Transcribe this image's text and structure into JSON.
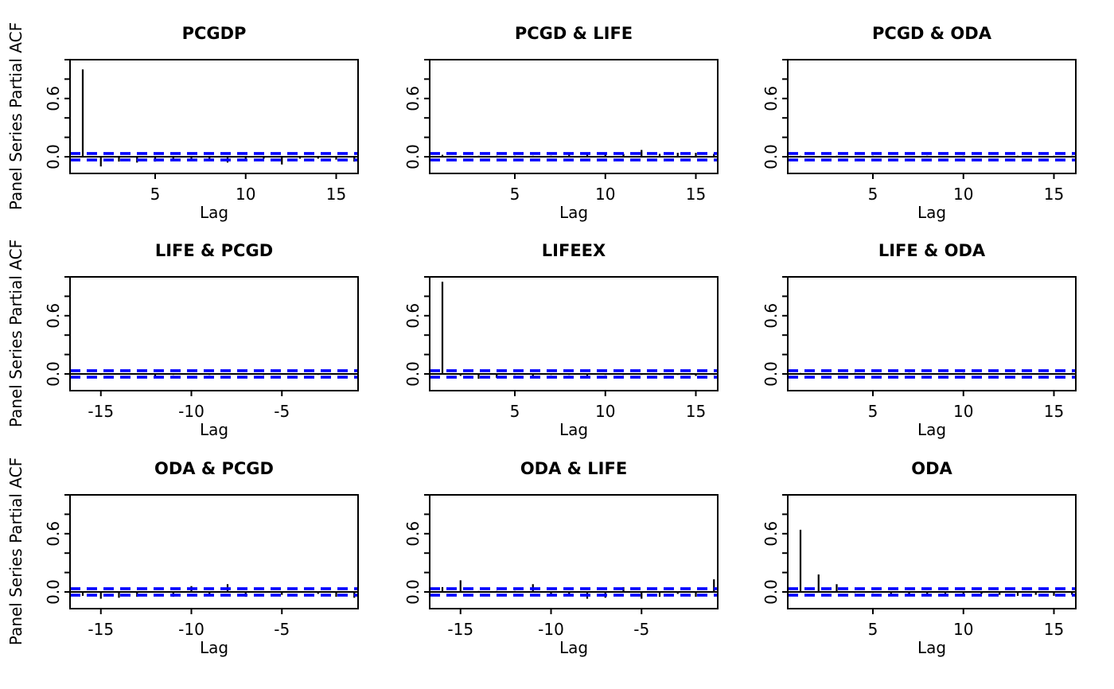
{
  "figure": {
    "ylab": "Panel Series Partial ACF",
    "xlab": "Lag",
    "background": "#ffffff",
    "bar_color": "#000000",
    "axis_color": "#000000",
    "ci_color": "#0000ff",
    "ci_value": 0.033,
    "ci_style": "dashed",
    "ylim": [
      -0.172,
      1.0
    ],
    "ytick_values": [
      0.0,
      0.2,
      0.4,
      0.6,
      0.8,
      1.0
    ],
    "ytick_labels": [
      {
        "v": 0.0,
        "label": "0.0"
      },
      {
        "v": 0.6,
        "label": "0.6"
      }
    ],
    "grid": "off",
    "layout": "3x3 grid of partial autocorrelation plots"
  },
  "chart_data": [
    {
      "type": "bar",
      "title": "PCGDP",
      "x": [
        1,
        2,
        3,
        4,
        5,
        6,
        7,
        8,
        9,
        10,
        11,
        12,
        13,
        14,
        15,
        16
      ],
      "values": [
        0.9,
        -0.1,
        -0.05,
        -0.06,
        -0.05,
        -0.03,
        -0.02,
        -0.02,
        -0.06,
        -0.04,
        -0.02,
        -0.08,
        -0.02,
        -0.02,
        -0.03,
        -0.05
      ],
      "xticks": [
        {
          "v": 5,
          "label": "5"
        },
        {
          "v": 10,
          "label": "10"
        },
        {
          "v": 15,
          "label": "15"
        }
      ]
    },
    {
      "type": "bar",
      "title": "PCGD & LIFE",
      "x": [
        1,
        2,
        3,
        4,
        5,
        6,
        7,
        8,
        9,
        10,
        11,
        12,
        13,
        14,
        15,
        16
      ],
      "values": [
        0.02,
        0.01,
        0.01,
        0.01,
        0.01,
        0.01,
        0.01,
        0.02,
        0.03,
        0.04,
        0.03,
        0.07,
        0.03,
        0.04,
        0.04,
        0.03
      ],
      "xticks": [
        {
          "v": 5,
          "label": "5"
        },
        {
          "v": 10,
          "label": "10"
        },
        {
          "v": 15,
          "label": "15"
        }
      ]
    },
    {
      "type": "bar",
      "title": "PCGD & ODA",
      "x": [
        1,
        2,
        3,
        4,
        5,
        6,
        7,
        8,
        9,
        10,
        11,
        12,
        13,
        14,
        15,
        16
      ],
      "values": [
        0.01,
        0.0,
        0.01,
        0.0,
        0.01,
        0.0,
        0.0,
        0.01,
        0.0,
        0.01,
        0.0,
        0.0,
        0.01,
        0.0,
        0.01,
        0.01
      ],
      "xticks": [
        {
          "v": 5,
          "label": "5"
        },
        {
          "v": 10,
          "label": "10"
        },
        {
          "v": 15,
          "label": "15"
        }
      ]
    },
    {
      "type": "bar",
      "title": "LIFE & PCGD",
      "x": [
        -16,
        -15,
        -14,
        -13,
        -12,
        -11,
        -10,
        -9,
        -8,
        -7,
        -6,
        -5,
        -4,
        -3,
        -2,
        -1
      ],
      "values": [
        0.0,
        -0.01,
        0.0,
        0.0,
        -0.04,
        -0.01,
        0.0,
        -0.01,
        0.0,
        0.0,
        -0.01,
        0.0,
        0.0,
        -0.01,
        0.0,
        -0.01
      ],
      "xticks": [
        {
          "v": -15,
          "label": "-15"
        },
        {
          "v": -10,
          "label": "-10"
        },
        {
          "v": -5,
          "label": "-5"
        }
      ]
    },
    {
      "type": "bar",
      "title": "LIFEEX",
      "x": [
        1,
        2,
        3,
        4,
        5,
        6,
        7,
        8,
        9,
        10,
        11,
        12,
        13,
        14,
        15,
        16
      ],
      "values": [
        0.95,
        -0.02,
        -0.05,
        -0.04,
        -0.01,
        -0.03,
        -0.01,
        -0.01,
        -0.02,
        -0.01,
        -0.01,
        -0.01,
        -0.01,
        -0.01,
        -0.02,
        -0.01
      ],
      "xticks": [
        {
          "v": 5,
          "label": "5"
        },
        {
          "v": 10,
          "label": "10"
        },
        {
          "v": 15,
          "label": "15"
        }
      ]
    },
    {
      "type": "bar",
      "title": "LIFE & ODA",
      "x": [
        1,
        2,
        3,
        4,
        5,
        6,
        7,
        8,
        9,
        10,
        11,
        12,
        13,
        14,
        15,
        16
      ],
      "values": [
        0.01,
        0.0,
        0.0,
        0.01,
        0.0,
        0.0,
        0.01,
        0.0,
        0.0,
        0.01,
        0.0,
        0.0,
        0.01,
        0.0,
        0.0,
        0.01
      ],
      "xticks": [
        {
          "v": 5,
          "label": "5"
        },
        {
          "v": 10,
          "label": "10"
        },
        {
          "v": 15,
          "label": "15"
        }
      ]
    },
    {
      "type": "bar",
      "title": "ODA & PCGD",
      "x": [
        -16,
        -15,
        -14,
        -13,
        -12,
        -11,
        -10,
        -9,
        -8,
        -7,
        -6,
        -5,
        -4,
        -3,
        -2,
        -1
      ],
      "values": [
        -0.04,
        -0.07,
        -0.06,
        -0.05,
        0.0,
        -0.05,
        0.06,
        -0.04,
        0.08,
        -0.05,
        0.0,
        -0.03,
        0.0,
        -0.02,
        -0.05,
        -0.06
      ],
      "xticks": [
        {
          "v": -15,
          "label": "-15"
        },
        {
          "v": -10,
          "label": "-10"
        },
        {
          "v": -5,
          "label": "-5"
        }
      ]
    },
    {
      "type": "bar",
      "title": "ODA & LIFE",
      "x": [
        -16,
        -15,
        -14,
        -13,
        -12,
        -11,
        -10,
        -9,
        -8,
        -7,
        -6,
        -5,
        -4,
        -3,
        -2,
        -1
      ],
      "values": [
        0.05,
        0.12,
        0.01,
        0.01,
        0.01,
        0.08,
        -0.04,
        -0.03,
        -0.07,
        -0.06,
        0.05,
        -0.07,
        -0.05,
        -0.02,
        -0.05,
        0.13
      ],
      "xticks": [
        {
          "v": -15,
          "label": "-15"
        },
        {
          "v": -10,
          "label": "-10"
        },
        {
          "v": -5,
          "label": "-5"
        }
      ]
    },
    {
      "type": "bar",
      "title": "ODA",
      "x": [
        1,
        2,
        3,
        4,
        5,
        6,
        7,
        8,
        9,
        10,
        11,
        12,
        13,
        14,
        15,
        16
      ],
      "values": [
        0.64,
        0.18,
        0.08,
        -0.01,
        -0.01,
        -0.02,
        -0.03,
        -0.03,
        -0.02,
        -0.03,
        -0.02,
        -0.03,
        -0.04,
        -0.03,
        -0.04,
        -0.03
      ],
      "xticks": [
        {
          "v": 5,
          "label": "5"
        },
        {
          "v": 10,
          "label": "10"
        },
        {
          "v": 15,
          "label": "15"
        }
      ]
    }
  ]
}
